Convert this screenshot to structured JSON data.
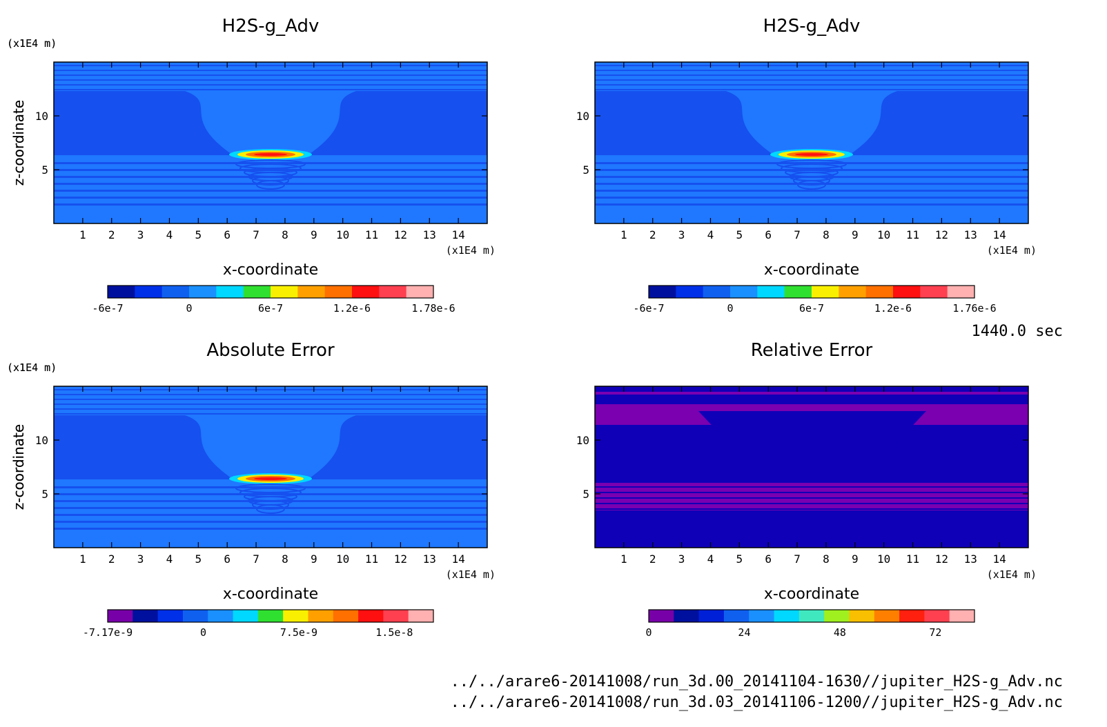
{
  "time_label": "1440.0 sec",
  "files": [
    "../../arare6-20141008/run_3d.00_20141104-1630//jupiter_H2S-g_Adv.nc",
    "../../arare6-20141008/run_3d.03_20141106-1200//jupiter_H2S-g_Adv.nc"
  ],
  "colors": {
    "background_blue": "#1f78ff",
    "field_blue": "#1f78ff",
    "dark_blue": "#1650ee",
    "relative_bg": "#0f00b8",
    "relative_purple": "#7a00b0",
    "bands_top": "#1560e8"
  },
  "chart_data": [
    {
      "type": "heatmap",
      "title": "H2S-g_Adv",
      "xlabel": "x-coordinate",
      "ylabel": "z-coordinate",
      "x_unit": "(x1E4 m)",
      "y_unit": "(x1E4 m)",
      "xlim": [
        0,
        15
      ],
      "ylim": [
        0,
        15
      ],
      "x_ticks": [
        "1",
        "2",
        "3",
        "4",
        "5",
        "6",
        "7",
        "8",
        "9",
        "10",
        "11",
        "12",
        "13",
        "14"
      ],
      "y_ticks": [
        "5",
        "10"
      ],
      "colorbar": {
        "colors": [
          "#00109e",
          "#0030e8",
          "#1060f0",
          "#1a90ff",
          "#00d8ff",
          "#30e030",
          "#f8f000",
          "#ffa000",
          "#ff7000",
          "#ff1010",
          "#ff4050",
          "#ffb0b0"
        ],
        "labels": [
          "-6e-7",
          "0",
          "6e-7",
          "1.2e-6",
          "1.78e-6"
        ]
      }
    },
    {
      "type": "heatmap",
      "title": "H2S-g_Adv",
      "xlabel": "x-coordinate",
      "ylabel": "z-coordinate",
      "x_unit": "(x1E4 m)",
      "y_unit": "(x1E4 m)",
      "xlim": [
        0,
        15
      ],
      "ylim": [
        0,
        15
      ],
      "x_ticks": [
        "1",
        "2",
        "3",
        "4",
        "5",
        "6",
        "7",
        "8",
        "9",
        "10",
        "11",
        "12",
        "13",
        "14"
      ],
      "y_ticks": [
        "5",
        "10"
      ],
      "colorbar": {
        "colors": [
          "#00109e",
          "#0030e8",
          "#1060f0",
          "#1a90ff",
          "#00d8ff",
          "#30e030",
          "#f8f000",
          "#ffa000",
          "#ff7000",
          "#ff1010",
          "#ff4050",
          "#ffb0b0"
        ],
        "labels": [
          "-6e-7",
          "0",
          "6e-7",
          "1.2e-6",
          "1.76e-6"
        ]
      }
    },
    {
      "type": "heatmap",
      "title": "Absolute Error",
      "xlabel": "x-coordinate",
      "ylabel": "z-coordinate",
      "x_unit": "(x1E4 m)",
      "y_unit": "(x1E4 m)",
      "xlim": [
        0,
        15
      ],
      "ylim": [
        0,
        15
      ],
      "x_ticks": [
        "1",
        "2",
        "3",
        "4",
        "5",
        "6",
        "7",
        "8",
        "9",
        "10",
        "11",
        "12",
        "13",
        "14"
      ],
      "y_ticks": [
        "5",
        "10"
      ],
      "colorbar": {
        "colors": [
          "#7800a8",
          "#00109e",
          "#0030e8",
          "#1060f0",
          "#1a90ff",
          "#00d8ff",
          "#30e030",
          "#f8f000",
          "#ffa000",
          "#ff7000",
          "#ff1010",
          "#ff4050",
          "#ffb0b0"
        ],
        "labels": [
          "-7.17e-9",
          "0",
          "7.5e-9",
          "1.5e-8"
        ]
      }
    },
    {
      "type": "heatmap",
      "title": "Relative Error",
      "xlabel": "x-coordinate",
      "ylabel": "z-coordinate",
      "x_unit": "(x1E4 m)",
      "y_unit": "(x1E4 m)",
      "xlim": [
        0,
        15
      ],
      "ylim": [
        0,
        15
      ],
      "x_ticks": [
        "1",
        "2",
        "3",
        "4",
        "5",
        "6",
        "7",
        "8",
        "9",
        "10",
        "11",
        "12",
        "13",
        "14"
      ],
      "y_ticks": [
        "5",
        "10"
      ],
      "colorbar": {
        "colors": [
          "#7800a8",
          "#00109e",
          "#0020d8",
          "#1060f0",
          "#1a90ff",
          "#00d8ff",
          "#40e8c0",
          "#a0f020",
          "#f8c000",
          "#ff8000",
          "#ff2010",
          "#ff4050",
          "#ffb0b0"
        ],
        "labels": [
          "0",
          "24",
          "48",
          "72"
        ]
      }
    }
  ]
}
